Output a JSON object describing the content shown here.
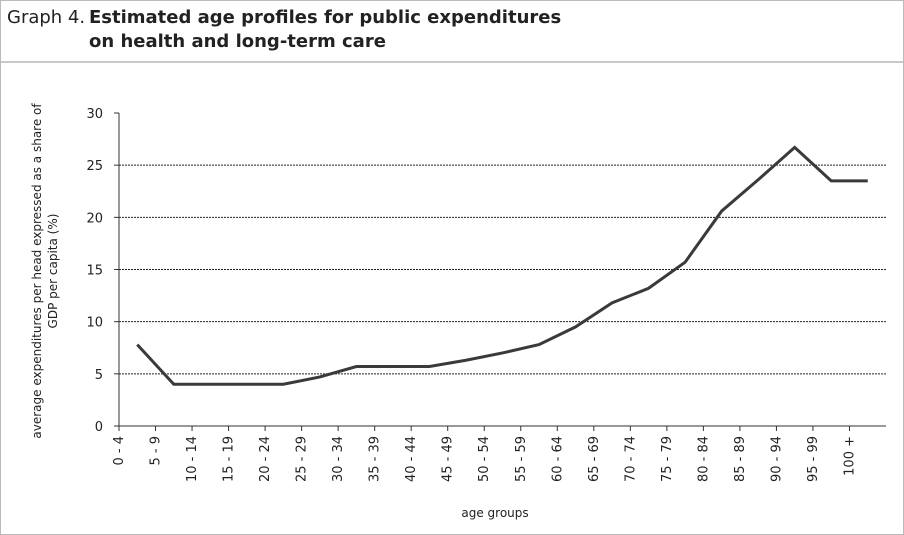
{
  "chart_data": {
    "type": "line",
    "label": "Graph 4.",
    "title_lines": [
      "Estimated age profiles for public expenditures",
      "on health and long-term care"
    ],
    "y_label_lines": [
      "average expenditures per head expressed as a share of",
      "GDP per capita (%)"
    ],
    "x_label": "age groups",
    "categories": [
      "0 - 4",
      "5 - 9",
      "10 - 14",
      "15 - 19",
      "20 - 24",
      "25 - 29",
      "30 - 34",
      "35 - 39",
      "40 - 44",
      "45 - 49",
      "50 - 54",
      "55 - 59",
      "60 - 64",
      "65 - 69",
      "70 - 74",
      "75 - 79",
      "80 - 84",
      "85 - 89",
      "90 - 94",
      "95 - 99",
      "100 +"
    ],
    "series": [
      {
        "color": "#3a3a3a",
        "values": [
          7.8,
          4,
          4,
          4,
          4,
          4.7,
          5.7,
          5.7,
          5.7,
          6.3,
          7,
          7.8,
          9.5,
          11.8,
          13.2,
          15.7,
          20.6,
          23.6,
          26.7,
          23.5,
          23.5
        ]
      }
    ],
    "ylim": [
      0,
      30
    ],
    "yticks": [
      0,
      5,
      10,
      15,
      20,
      25,
      30
    ],
    "grid": true
  }
}
